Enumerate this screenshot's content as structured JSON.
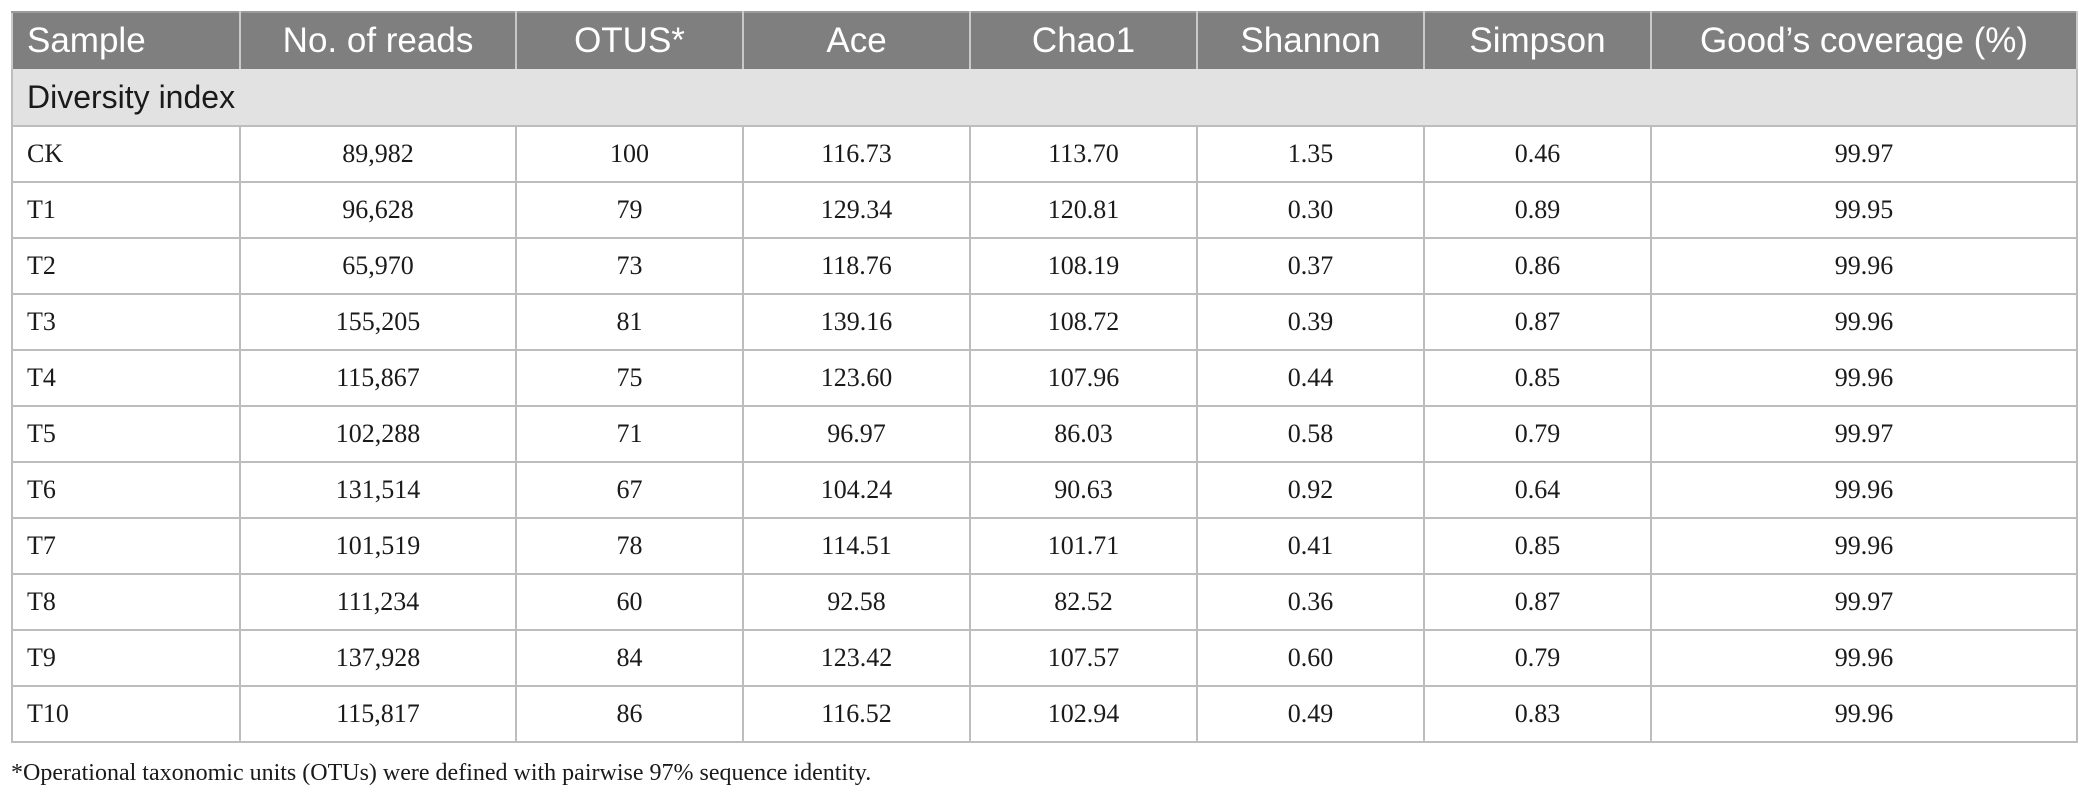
{
  "table": {
    "headers": [
      "Sample",
      "No. of reads",
      "OTUS*",
      "Ace",
      "Chao1",
      "Shannon",
      "Simpson",
      "Good’s coverage (%)"
    ],
    "section_label": "Diversity index",
    "rows": [
      [
        "CK",
        "89,982",
        "100",
        "116.73",
        "113.70",
        "1.35",
        "0.46",
        "99.97"
      ],
      [
        "T1",
        "96,628",
        "79",
        "129.34",
        "120.81",
        "0.30",
        "0.89",
        "99.95"
      ],
      [
        "T2",
        "65,970",
        "73",
        "118.76",
        "108.19",
        "0.37",
        "0.86",
        "99.96"
      ],
      [
        "T3",
        "155,205",
        "81",
        "139.16",
        "108.72",
        "0.39",
        "0.87",
        "99.96"
      ],
      [
        "T4",
        "115,867",
        "75",
        "123.60",
        "107.96",
        "0.44",
        "0.85",
        "99.96"
      ],
      [
        "T5",
        "102,288",
        "71",
        "96.97",
        "86.03",
        "0.58",
        "0.79",
        "99.97"
      ],
      [
        "T6",
        "131,514",
        "67",
        "104.24",
        "90.63",
        "0.92",
        "0.64",
        "99.96"
      ],
      [
        "T7",
        "101,519",
        "78",
        "114.51",
        "101.71",
        "0.41",
        "0.85",
        "99.96"
      ],
      [
        "T8",
        "111,234",
        "60",
        "92.58",
        "82.52",
        "0.36",
        "0.87",
        "99.97"
      ],
      [
        "T9",
        "137,928",
        "84",
        "123.42",
        "107.57",
        "0.60",
        "0.79",
        "99.96"
      ],
      [
        "T10",
        "115,817",
        "86",
        "116.52",
        "102.94",
        "0.49",
        "0.83",
        "99.96"
      ]
    ]
  },
  "footnote": "*Operational taxonomic units (OTUs) were defined with pairwise 97% sequence identity.",
  "colors": {
    "header_bg": "#7f7f7f",
    "header_text": "#ffffff",
    "section_bg": "#e2e2e2",
    "grid_line": "#bdbdbd"
  }
}
